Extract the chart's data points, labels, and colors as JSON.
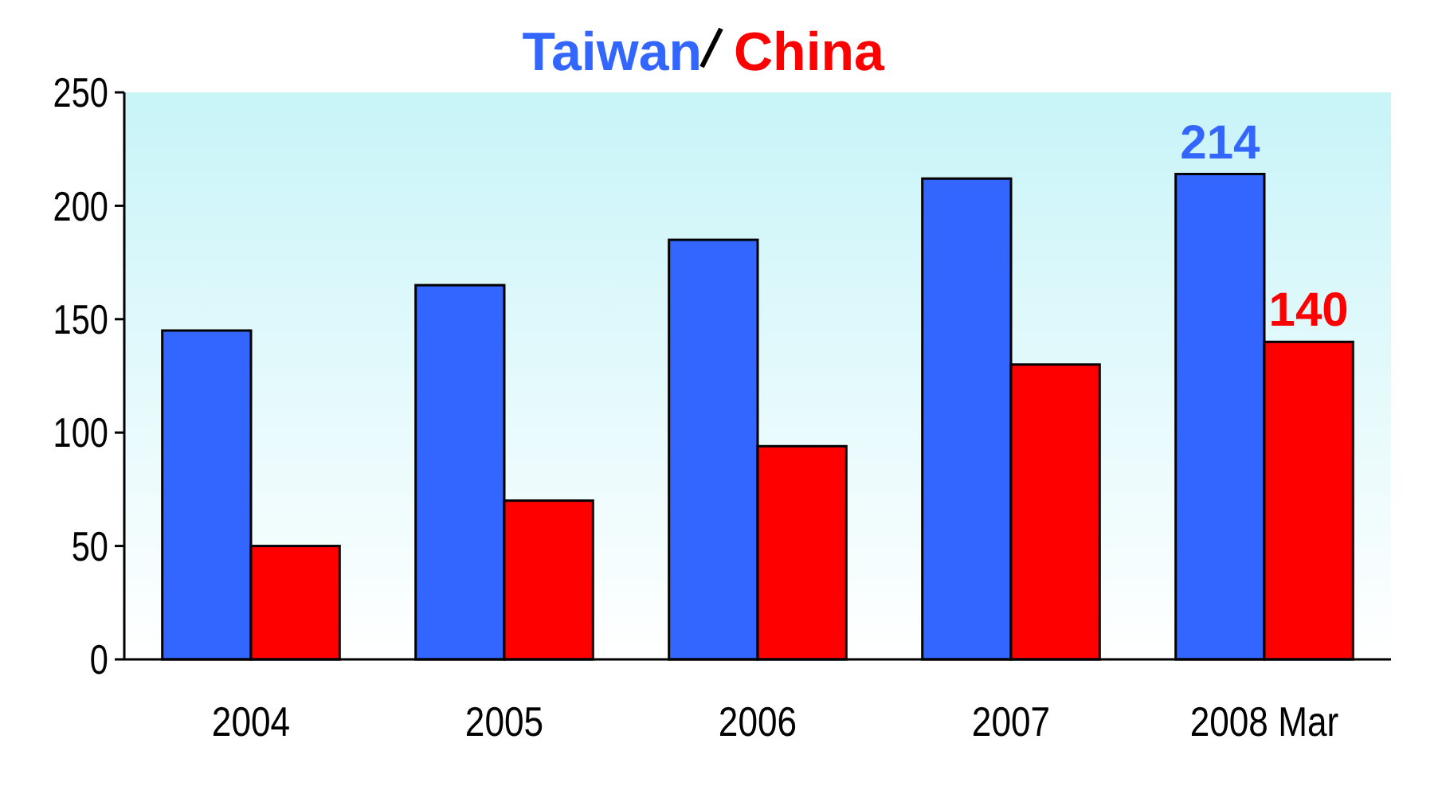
{
  "chart_data": {
    "type": "bar",
    "categories": [
      "2004",
      "2005",
      "2006",
      "2007",
      "2008 Mar"
    ],
    "series": [
      {
        "name": "Taiwan",
        "color": "#3366ff",
        "values": [
          145,
          165,
          185,
          212,
          214
        ],
        "value_labels": [
          null,
          null,
          null,
          null,
          "214"
        ]
      },
      {
        "name": "China",
        "color": "#ff0000",
        "values": [
          50,
          70,
          94,
          130,
          140
        ],
        "value_labels": [
          null,
          null,
          null,
          null,
          "140"
        ]
      }
    ],
    "ylim": [
      0,
      250
    ],
    "yticks": [
      0,
      50,
      100,
      150,
      200,
      250
    ],
    "grid": false,
    "legend": "top"
  }
}
